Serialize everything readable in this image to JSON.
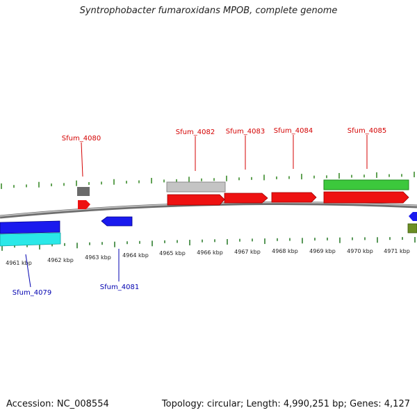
{
  "title": "Syntrophobacter fumaroxidans MPOB, complete genome",
  "footer": {
    "accession": "Accession: NC_008554",
    "summary": "Topology: circular; Length: 4,990,251 bp; Genes: 4,127"
  },
  "colors": {
    "label_forward": "#d40000",
    "label_reverse": "#0000b0",
    "tick": "#3a8a2a",
    "tick_lower": "#2f7f2f",
    "backbone": "#8a8a8a"
  },
  "scale": {
    "unit": "kbp",
    "labels": [
      "4961 kbp",
      "4962 kbp",
      "4963 kbp",
      "4964 kbp",
      "4965 kbp",
      "4966 kbp",
      "4967 kbp",
      "4968 kbp",
      "4969 kbp",
      "4970 kbp",
      "4971 kbp"
    ]
  },
  "gene_labels": {
    "forward": [
      "Sfum_4080",
      "Sfum_4082",
      "Sfum_4083",
      "Sfum_4084",
      "Sfum_4085"
    ],
    "reverse": [
      "Sfum_4079",
      "Sfum_4081"
    ]
  }
}
